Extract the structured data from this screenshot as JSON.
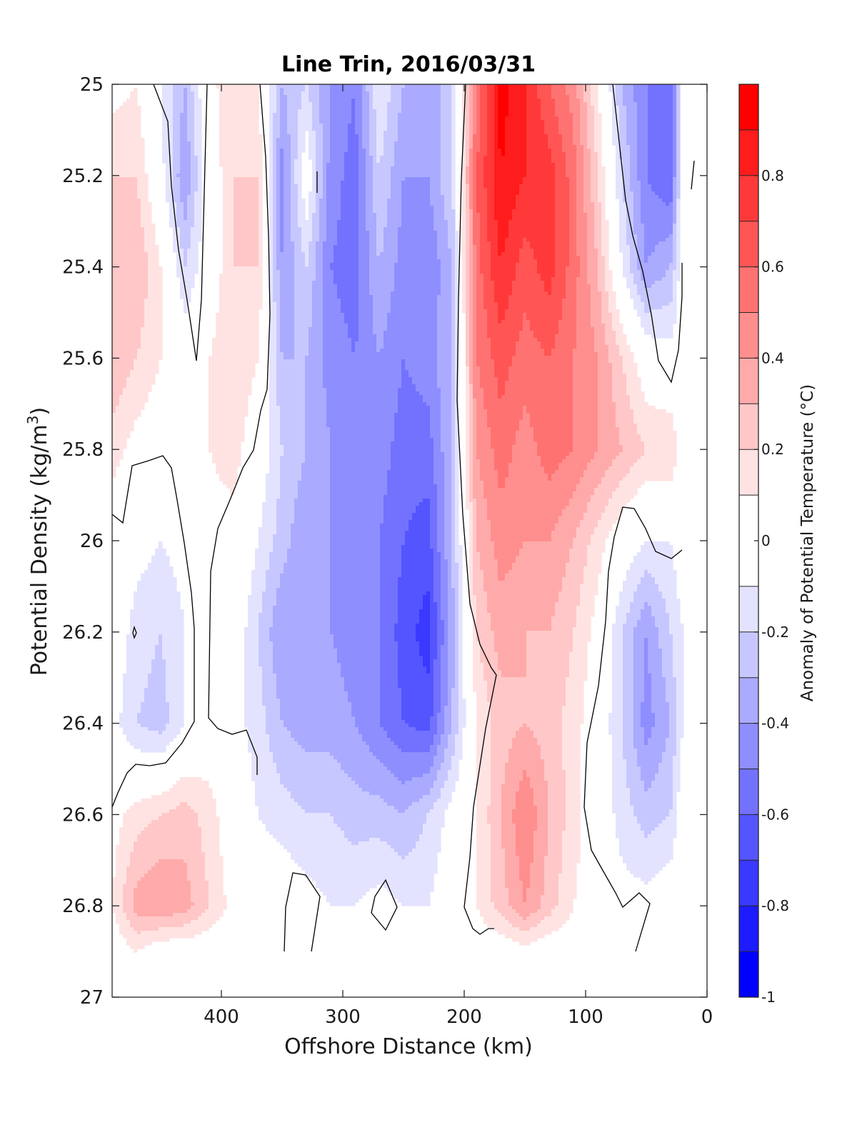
{
  "chart_data": {
    "type": "heatmap",
    "subtype": "filled-contour",
    "title": "Line Trin, 2016/03/31",
    "xlabel": "Offshore Distance (km)",
    "ylabel": "Potential Density (kg/m^3)",
    "ylabel_parts": {
      "main": "Potential Density (kg/m",
      "sup": "3",
      "end": ")"
    },
    "xlim": [
      490,
      0
    ],
    "x_reversed": true,
    "ylim": [
      25,
      27
    ],
    "y_reversed": true,
    "xticks": [
      400,
      300,
      200,
      100,
      0
    ],
    "xtick_labels": [
      "400",
      "300",
      "200",
      "100",
      "0"
    ],
    "yticks": [
      25,
      25.2,
      25.4,
      25.6,
      25.8,
      26,
      26.2,
      26.4,
      26.6,
      26.8,
      27
    ],
    "ytick_labels": [
      "25",
      "25.2",
      "25.4",
      "25.6",
      "25.8",
      "26",
      "26.2",
      "26.4",
      "26.6",
      "26.8",
      "27"
    ],
    "colorbar": {
      "label": "Anomaly of Potential Temperature (°C)",
      "range": [
        -1,
        1
      ],
      "levels": [
        -1,
        -0.9,
        -0.8,
        -0.7,
        -0.6,
        -0.5,
        -0.4,
        -0.3,
        -0.2,
        -0.1,
        0.1,
        0.2,
        0.3,
        0.4,
        0.5,
        0.6,
        0.7,
        0.8,
        0.9,
        1.0
      ],
      "ticks": [
        0.8,
        0.6,
        0.4,
        0.2,
        0,
        -0.2,
        -0.4,
        -0.6,
        -0.8,
        -1
      ],
      "tick_labels": [
        "0.8",
        "0.6",
        "0.4",
        "0.2",
        "0",
        "-0.2",
        "-0.4",
        "-0.6",
        "-0.8",
        "-1"
      ],
      "colors": [
        "#0000ff",
        "#1c1cff",
        "#3939ff",
        "#5555ff",
        "#7272ff",
        "#8e8eff",
        "#aaaaff",
        "#c7c7ff",
        "#e3e3ff",
        "#ffffff",
        "#ffe3e3",
        "#ffc7c7",
        "#ffaaaa",
        "#ff8e8e",
        "#ff7272",
        "#ff5555",
        "#ff3939",
        "#ff1c1c",
        "#ff0000"
      ]
    },
    "grid": false,
    "contour_line": 0,
    "sample_x_km": [
      490,
      470,
      450,
      430,
      410,
      390,
      370,
      350,
      330,
      310,
      290,
      270,
      250,
      230,
      210,
      190,
      170,
      150,
      130,
      110,
      90,
      70,
      50,
      30,
      20
    ],
    "sample_y_density": [
      25.0,
      25.2,
      25.4,
      25.6,
      25.8,
      26.0,
      26.2,
      26.4,
      26.6,
      26.8,
      26.9
    ],
    "values": [
      [
        0.05,
        0.1,
        -0.1,
        -0.3,
        0.05,
        0.2,
        0.1,
        -0.3,
        -0.2,
        -0.4,
        -0.5,
        -0.1,
        -0.3,
        -0.4,
        -0.2,
        0.5,
        0.95,
        0.8,
        0.6,
        0.45,
        0.1,
        -0.3,
        -0.5,
        -0.6,
        0.0
      ],
      [
        0.2,
        0.2,
        -0.05,
        -0.4,
        0.0,
        0.2,
        0.2,
        -0.45,
        0.0,
        -0.45,
        -0.55,
        -0.2,
        -0.4,
        -0.4,
        -0.2,
        0.6,
        0.9,
        0.8,
        0.75,
        0.55,
        0.2,
        -0.2,
        -0.5,
        -0.6,
        0.0
      ],
      [
        0.3,
        0.3,
        0.1,
        -0.2,
        0.0,
        0.2,
        0.2,
        -0.4,
        -0.2,
        -0.5,
        -0.55,
        -0.3,
        -0.45,
        -0.5,
        -0.3,
        0.55,
        0.8,
        0.65,
        0.75,
        0.55,
        0.3,
        -0.1,
        -0.4,
        -0.3,
        0.0
      ],
      [
        0.3,
        0.2,
        0.1,
        0.0,
        0.1,
        0.2,
        0.1,
        -0.3,
        -0.3,
        -0.45,
        -0.5,
        -0.4,
        -0.5,
        -0.45,
        -0.3,
        0.5,
        0.65,
        0.55,
        0.6,
        0.5,
        0.4,
        0.2,
        0.0,
        -0.05,
        0.0
      ],
      [
        0.15,
        0.05,
        0.0,
        0.05,
        0.1,
        0.15,
        0.0,
        -0.2,
        -0.3,
        -0.4,
        -0.45,
        -0.45,
        -0.55,
        -0.55,
        -0.3,
        0.4,
        0.55,
        0.45,
        0.55,
        0.5,
        0.4,
        0.3,
        0.2,
        0.2,
        0.0
      ],
      [
        0.0,
        -0.05,
        -0.1,
        -0.05,
        0.05,
        0.05,
        -0.1,
        -0.25,
        -0.4,
        -0.4,
        -0.45,
        -0.5,
        -0.6,
        -0.65,
        -0.3,
        0.3,
        0.45,
        0.4,
        0.4,
        0.3,
        0.15,
        0.0,
        -0.1,
        -0.1,
        0.0
      ],
      [
        0.0,
        -0.15,
        -0.2,
        -0.1,
        0.0,
        0.0,
        -0.2,
        -0.4,
        -0.35,
        -0.4,
        -0.45,
        -0.5,
        -0.65,
        -0.75,
        -0.35,
        0.2,
        0.35,
        0.3,
        0.3,
        0.2,
        0.05,
        -0.2,
        -0.4,
        -0.2,
        -0.1
      ],
      [
        -0.05,
        -0.2,
        -0.25,
        -0.1,
        0.0,
        -0.05,
        -0.15,
        -0.3,
        -0.35,
        -0.35,
        -0.4,
        -0.5,
        -0.6,
        -0.65,
        -0.3,
        0.1,
        0.25,
        0.3,
        0.25,
        0.15,
        0.0,
        -0.2,
        -0.45,
        -0.3,
        -0.1
      ],
      [
        0.05,
        0.15,
        0.2,
        0.25,
        0.15,
        0.0,
        -0.1,
        -0.15,
        -0.2,
        -0.2,
        -0.25,
        -0.25,
        -0.3,
        -0.2,
        -0.05,
        0.1,
        0.3,
        0.5,
        0.3,
        0.15,
        0.0,
        -0.15,
        -0.25,
        -0.2,
        0.0
      ],
      [
        0.1,
        0.35,
        0.4,
        0.35,
        0.2,
        0.05,
        0.0,
        0.0,
        -0.05,
        -0.1,
        -0.1,
        -0.05,
        -0.1,
        -0.1,
        0.0,
        0.1,
        0.25,
        0.4,
        0.25,
        0.1,
        0.0,
        -0.05,
        -0.05,
        0.0,
        0.0
      ],
      [
        0.0,
        0.1,
        0.0,
        0.0,
        0.0,
        0.0,
        0.0,
        0.0,
        -0.05,
        0.0,
        0.0,
        0.0,
        -0.1,
        -0.05,
        0.0,
        0.0,
        0.0,
        0.05,
        0.0,
        0.0,
        0.0,
        0.0,
        0.0,
        0.0,
        0.0
      ]
    ]
  }
}
